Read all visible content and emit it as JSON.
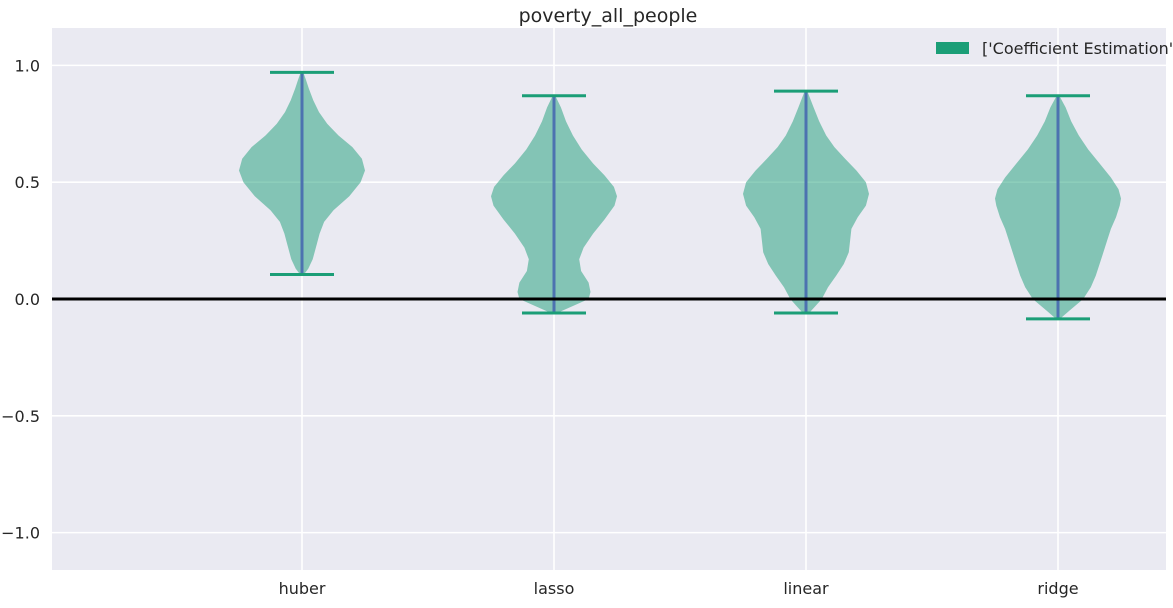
{
  "chart_data": {
    "type": "violin",
    "title": "poverty_all_people",
    "categories": [
      "huber",
      "lasso",
      "linear",
      "ridge"
    ],
    "ylim": [
      -1.16,
      1.16
    ],
    "yticks": [
      -1.0,
      -0.5,
      0.0,
      0.5,
      1.0
    ],
    "ytick_labels": [
      "−1.0",
      "−0.5",
      "0.0",
      "0.5",
      "1.0"
    ],
    "legend": {
      "label": "['Coefficient Estimation']",
      "placement": "top-right"
    },
    "grid": true,
    "reference_line_y": 0.0,
    "colors": {
      "background": "#eaeaf2",
      "grid": "#ffffff",
      "body": "#1b9e77",
      "body_alpha": 0.5,
      "caps": "#1b9e77",
      "median_line": "#4c72b0",
      "reference_line": "#000000"
    },
    "series": [
      {
        "category": "huber",
        "min": 0.105,
        "max": 0.97,
        "profile": [
          [
            0.105,
            0.03
          ],
          [
            0.13,
            0.1
          ],
          [
            0.17,
            0.17
          ],
          [
            0.23,
            0.23
          ],
          [
            0.28,
            0.28
          ],
          [
            0.33,
            0.35
          ],
          [
            0.38,
            0.5
          ],
          [
            0.44,
            0.75
          ],
          [
            0.5,
            0.93
          ],
          [
            0.55,
            1.0
          ],
          [
            0.6,
            0.95
          ],
          [
            0.65,
            0.8
          ],
          [
            0.7,
            0.58
          ],
          [
            0.75,
            0.4
          ],
          [
            0.8,
            0.27
          ],
          [
            0.85,
            0.18
          ],
          [
            0.9,
            0.11
          ],
          [
            0.94,
            0.06
          ],
          [
            0.97,
            0.02
          ]
        ]
      },
      {
        "category": "lasso",
        "min": -0.06,
        "max": 0.87,
        "profile": [
          [
            -0.06,
            0.05
          ],
          [
            -0.03,
            0.3
          ],
          [
            0.0,
            0.55
          ],
          [
            0.03,
            0.58
          ],
          [
            0.07,
            0.55
          ],
          [
            0.12,
            0.43
          ],
          [
            0.17,
            0.4
          ],
          [
            0.22,
            0.47
          ],
          [
            0.28,
            0.62
          ],
          [
            0.34,
            0.8
          ],
          [
            0.4,
            0.96
          ],
          [
            0.44,
            1.0
          ],
          [
            0.48,
            0.95
          ],
          [
            0.53,
            0.8
          ],
          [
            0.58,
            0.62
          ],
          [
            0.64,
            0.44
          ],
          [
            0.7,
            0.3
          ],
          [
            0.76,
            0.19
          ],
          [
            0.82,
            0.11
          ],
          [
            0.87,
            0.02
          ]
        ]
      },
      {
        "category": "linear",
        "min": -0.06,
        "max": 0.89,
        "profile": [
          [
            -0.06,
            0.05
          ],
          [
            -0.03,
            0.15
          ],
          [
            0.0,
            0.25
          ],
          [
            0.05,
            0.35
          ],
          [
            0.1,
            0.48
          ],
          [
            0.15,
            0.6
          ],
          [
            0.2,
            0.68
          ],
          [
            0.25,
            0.7
          ],
          [
            0.3,
            0.72
          ],
          [
            0.35,
            0.82
          ],
          [
            0.4,
            0.95
          ],
          [
            0.45,
            1.0
          ],
          [
            0.5,
            0.95
          ],
          [
            0.55,
            0.8
          ],
          [
            0.6,
            0.62
          ],
          [
            0.65,
            0.45
          ],
          [
            0.7,
            0.32
          ],
          [
            0.76,
            0.21
          ],
          [
            0.82,
            0.12
          ],
          [
            0.89,
            0.02
          ]
        ]
      },
      {
        "category": "ridge",
        "min": -0.085,
        "max": 0.87,
        "profile": [
          [
            -0.085,
            0.03
          ],
          [
            -0.05,
            0.18
          ],
          [
            0.0,
            0.4
          ],
          [
            0.05,
            0.52
          ],
          [
            0.1,
            0.6
          ],
          [
            0.15,
            0.66
          ],
          [
            0.2,
            0.72
          ],
          [
            0.25,
            0.78
          ],
          [
            0.3,
            0.84
          ],
          [
            0.35,
            0.92
          ],
          [
            0.4,
            0.98
          ],
          [
            0.43,
            1.0
          ],
          [
            0.47,
            0.96
          ],
          [
            0.52,
            0.84
          ],
          [
            0.58,
            0.66
          ],
          [
            0.64,
            0.48
          ],
          [
            0.7,
            0.33
          ],
          [
            0.76,
            0.21
          ],
          [
            0.82,
            0.12
          ],
          [
            0.87,
            0.02
          ]
        ]
      }
    ]
  }
}
